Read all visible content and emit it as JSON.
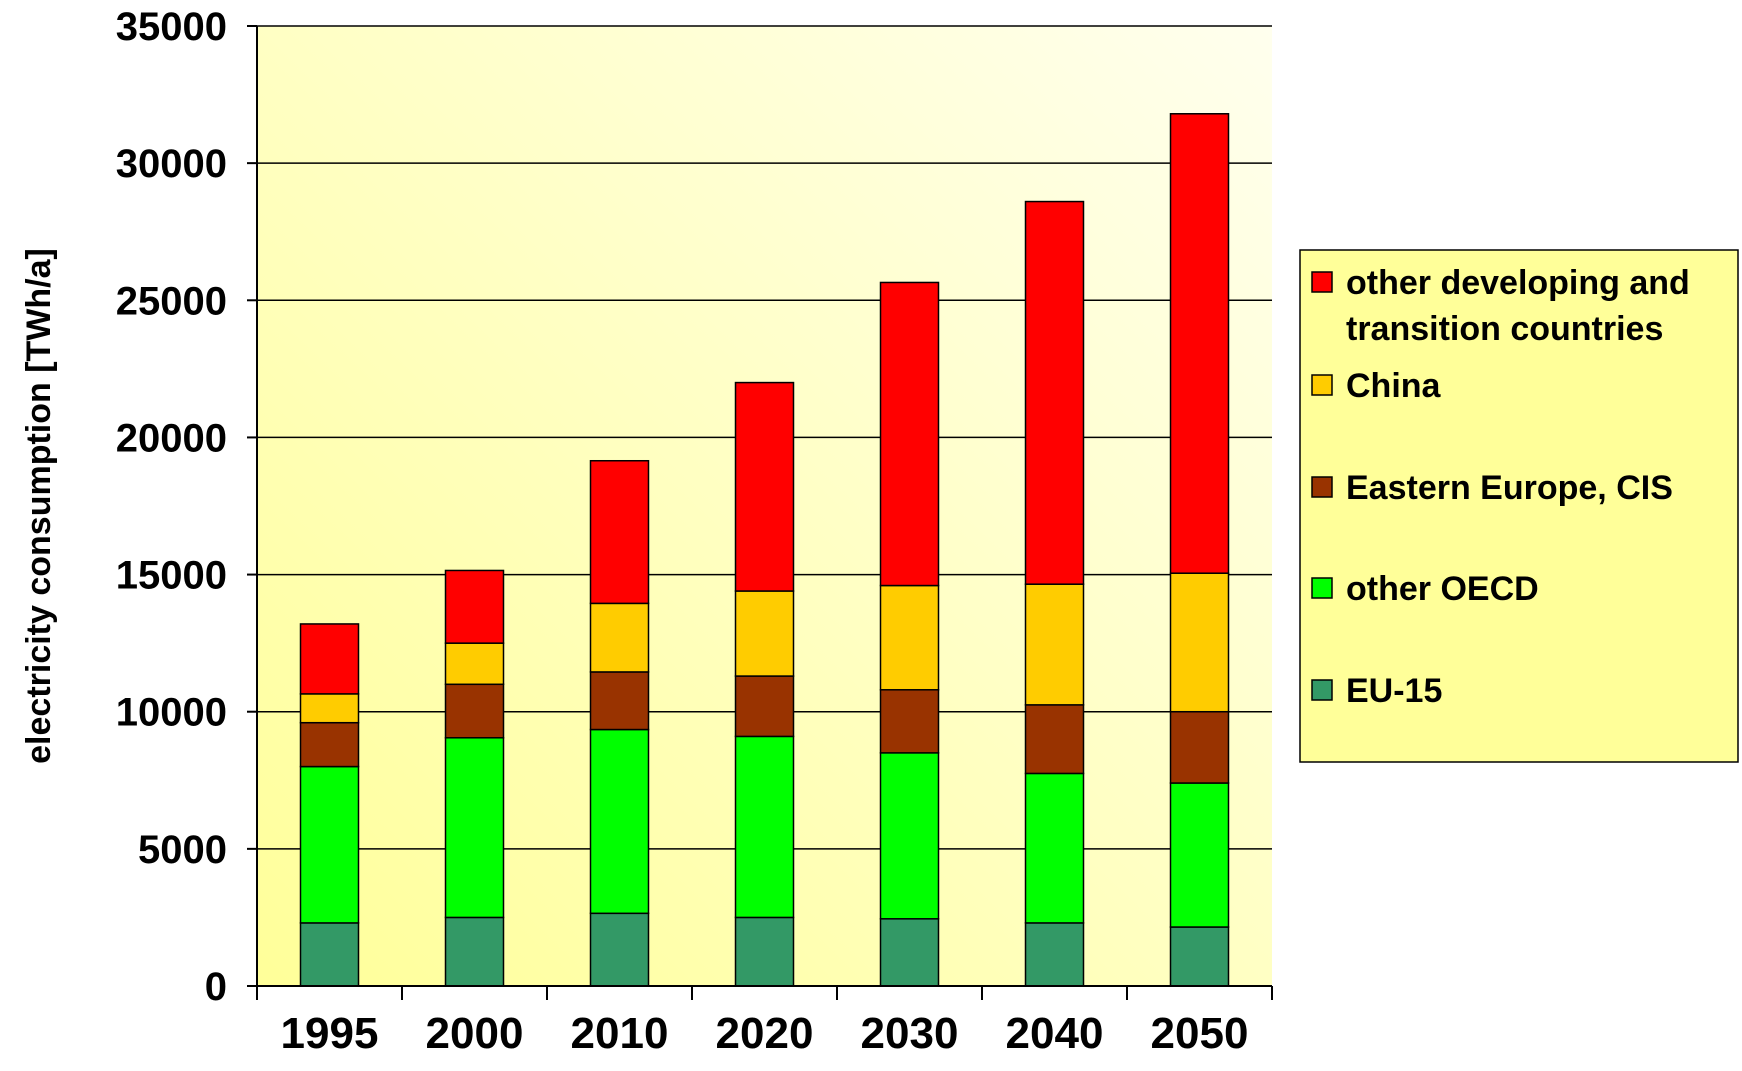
{
  "chart_data": {
    "type": "bar",
    "stacked": true,
    "title": "",
    "xlabel": "",
    "ylabel": "electricity consumption [TWh/a]",
    "ylim": [
      0,
      35000
    ],
    "yticks": [
      0,
      5000,
      10000,
      15000,
      20000,
      25000,
      30000,
      35000
    ],
    "grid": true,
    "legend_position": "right",
    "categories": [
      "1995",
      "2000",
      "2010",
      "2020",
      "2030",
      "2040",
      "2050"
    ],
    "series": [
      {
        "name": "EU-15",
        "color": "#339966",
        "values": [
          2300,
          2500,
          2650,
          2500,
          2450,
          2300,
          2150
        ]
      },
      {
        "name": "other OECD",
        "color": "#00ff00",
        "values": [
          5700,
          6550,
          6700,
          6600,
          6050,
          5450,
          5250
        ]
      },
      {
        "name": "Eastern Europe, CIS",
        "color": "#993300",
        "values": [
          1600,
          1950,
          2100,
          2200,
          2300,
          2500,
          2600
        ]
      },
      {
        "name": "China",
        "color": "#ffcc00",
        "values": [
          1050,
          1500,
          2500,
          3100,
          3800,
          4400,
          5050
        ]
      },
      {
        "name": "other developing and transition countries",
        "color": "#ff0000",
        "values": [
          2550,
          2650,
          5200,
          7600,
          11050,
          13950,
          16750
        ]
      }
    ],
    "legend": {
      "entries": [
        {
          "lines": [
            "other developing and",
            "transition countries"
          ],
          "color": "#ff0000"
        },
        {
          "lines": [
            "China"
          ],
          "color": "#ffcc00"
        },
        {
          "lines": [
            "Eastern Europe, CIS"
          ],
          "color": "#993300"
        },
        {
          "lines": [
            "other OECD"
          ],
          "color": "#00ff00"
        },
        {
          "lines": [
            "EU-15"
          ],
          "color": "#339966"
        }
      ]
    },
    "plot_background": [
      "#ffff99",
      "#ffffee"
    ]
  }
}
